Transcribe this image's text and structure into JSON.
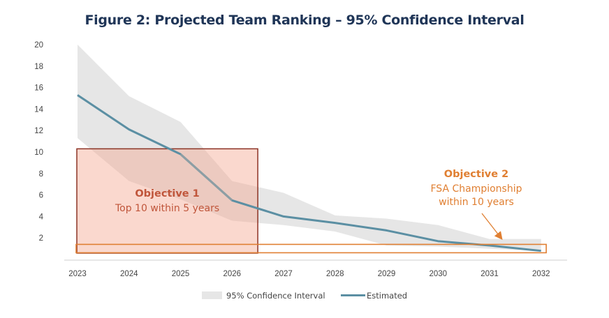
{
  "chart_data": {
    "type": "line",
    "title": "Figure 2: Projected Team Ranking – 95% Confidence Interval",
    "x": [
      "2023",
      "2024",
      "2025",
      "2026",
      "2027",
      "2028",
      "2029",
      "2030",
      "2031",
      "2032"
    ],
    "ylim": [
      0,
      20
    ],
    "yticks": [
      2,
      4,
      6,
      8,
      10,
      12,
      14,
      16,
      18,
      20
    ],
    "grid": false,
    "legend_position": "bottom",
    "series": [
      {
        "name": "Estimated",
        "type": "line",
        "color": "#5b8fa3",
        "values": [
          15.3,
          12.1,
          9.8,
          5.5,
          4.0,
          3.4,
          2.7,
          1.7,
          1.3,
          0.8
        ]
      },
      {
        "name": "95% Confidence Interval",
        "type": "band",
        "color": "#e6e6e6",
        "upper": [
          20.0,
          15.2,
          12.8,
          7.3,
          6.2,
          4.1,
          3.8,
          3.2,
          1.9,
          1.9
        ],
        "lower": [
          11.3,
          7.3,
          5.6,
          3.6,
          3.2,
          2.6,
          1.3,
          1.2,
          1.0,
          0.8
        ]
      }
    ],
    "annotations": [
      {
        "id": "objective-1",
        "title": "Objective 1",
        "text": [
          "Top 10 within 5 years"
        ],
        "x_range": [
          "2023",
          "2026.5"
        ],
        "y_range": [
          0,
          10.3
        ],
        "color": "#c0563b"
      },
      {
        "id": "objective-2",
        "title": "Objective 2",
        "text": [
          "FSA Championship",
          "within 10 years"
        ],
        "x_range": [
          "2023",
          "2032.1"
        ],
        "y_range": [
          0,
          1.4
        ],
        "color": "#e07f32"
      }
    ]
  }
}
